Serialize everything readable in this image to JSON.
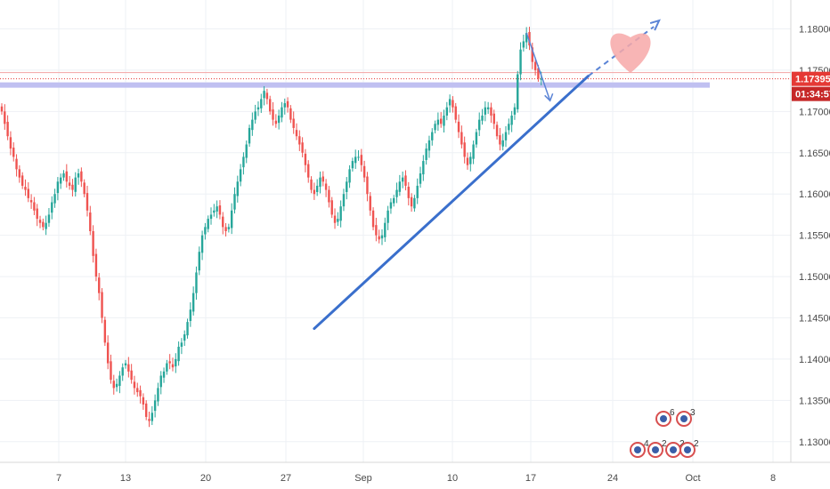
{
  "chart_data": {
    "type": "candlestick",
    "yticks": [
      "1.18000",
      "1.17500",
      "1.17000",
      "1.16500",
      "1.16000",
      "1.15500",
      "1.15000",
      "1.14500",
      "1.14000",
      "1.13500",
      "1.13000"
    ],
    "ytick_values": [
      1.18,
      1.175,
      1.17,
      1.165,
      1.16,
      1.155,
      1.15,
      1.145,
      1.14,
      1.135,
      1.13
    ],
    "xticks": [
      "7",
      "13",
      "20",
      "27",
      "Sep",
      "10",
      "17",
      "24",
      "Oct",
      "8"
    ],
    "ylim": [
      1.1275,
      1.1835
    ],
    "current_price": "1.17395",
    "current_price_value": 1.17395,
    "countdown": "01:34:57",
    "support_zone_price": 1.1732,
    "up_color": "#26a69a",
    "down_color": "#ef5350",
    "trendline_color": "#3a6fcc",
    "trendline": {
      "start": {
        "bar": 106,
        "price": 1.1437
      },
      "end": {
        "bar": 199,
        "price": 1.1743
      }
    },
    "projection": {
      "start": {
        "bar": 199,
        "price": 1.1743
      },
      "end": {
        "bar": 223,
        "price": 1.1808
      }
    },
    "candles_ohlc_close": [
      1.17,
      1.1685,
      1.167,
      1.1655,
      1.1645,
      1.163,
      1.162,
      1.161,
      1.1605,
      1.1595,
      1.159,
      1.158,
      1.157,
      1.1565,
      1.156,
      1.1565,
      1.1575,
      1.159,
      1.16,
      1.1615,
      1.162,
      1.1625,
      1.1615,
      1.161,
      1.1605,
      1.162,
      1.1625,
      1.1615,
      1.16,
      1.158,
      1.1555,
      1.1525,
      1.15,
      1.148,
      1.145,
      1.142,
      1.1395,
      1.1375,
      1.1365,
      1.137,
      1.138,
      1.139,
      1.1395,
      1.1385,
      1.1375,
      1.1365,
      1.136,
      1.1355,
      1.1345,
      1.133,
      1.1325,
      1.1335,
      1.135,
      1.1365,
      1.138,
      1.1385,
      1.1395,
      1.1395,
      1.139,
      1.14,
      1.1415,
      1.142,
      1.143,
      1.1445,
      1.146,
      1.148,
      1.1505,
      1.153,
      1.155,
      1.156,
      1.157,
      1.1575,
      1.158,
      1.1585,
      1.1575,
      1.156,
      1.1555,
      1.156,
      1.158,
      1.16,
      1.1615,
      1.163,
      1.1645,
      1.166,
      1.168,
      1.169,
      1.17,
      1.1705,
      1.1715,
      1.1725,
      1.1715,
      1.17,
      1.169,
      1.1685,
      1.1695,
      1.1705,
      1.171,
      1.1705,
      1.169,
      1.168,
      1.167,
      1.166,
      1.165,
      1.1635,
      1.162,
      1.1605,
      1.16,
      1.161,
      1.162,
      1.1615,
      1.1605,
      1.159,
      1.1575,
      1.1565,
      1.157,
      1.1585,
      1.16,
      1.1615,
      1.163,
      1.164,
      1.1645,
      1.1645,
      1.1635,
      1.162,
      1.16,
      1.158,
      1.156,
      1.155,
      1.1545,
      1.155,
      1.1565,
      1.158,
      1.159,
      1.1595,
      1.1605,
      1.1615,
      1.162,
      1.161,
      1.1595,
      1.1585,
      1.1595,
      1.161,
      1.1625,
      1.164,
      1.1655,
      1.1665,
      1.1675,
      1.1685,
      1.169,
      1.1685,
      1.1695,
      1.1705,
      1.1715,
      1.1705,
      1.169,
      1.1675,
      1.166,
      1.1645,
      1.1635,
      1.1645,
      1.166,
      1.1675,
      1.169,
      1.1695,
      1.1705,
      1.1705,
      1.1695,
      1.1685,
      1.167,
      1.166,
      1.1665,
      1.1675,
      1.1685,
      1.1695,
      1.1705,
      1.1745,
      1.1775,
      1.1785,
      1.1795,
      1.178,
      1.176,
      1.175,
      1.174,
      1.17395
    ],
    "news_markers": [
      "4",
      "2",
      "6",
      "2",
      "3",
      "2"
    ]
  }
}
